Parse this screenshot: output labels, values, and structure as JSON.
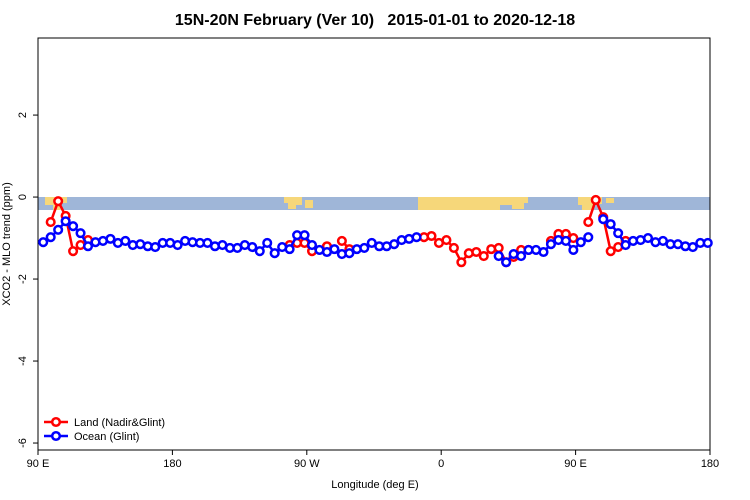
{
  "chart_data": {
    "type": "line",
    "title": "15N-20N February (Ver 10)   2015-01-01 to 2020-12-18",
    "x_label": "Longitude (deg E)",
    "y_label": "XCO2 - MLO trend (ppm)",
    "xlim": [
      90,
      540
    ],
    "ylim": [
      -6.17,
      3.88
    ],
    "xticks": [
      {
        "value": 90,
        "label": "90 E"
      },
      180,
      {
        "value": 270,
        "label": "90 W"
      },
      {
        "value": 360,
        "label": "0"
      },
      {
        "value": 450,
        "label": "90 E"
      },
      {
        "value": 540,
        "label": "180"
      }
    ],
    "yticks": [
      -6,
      -4,
      -2,
      0,
      2
    ],
    "legend": "lower left",
    "x": [
      93.5,
      98.5,
      103.5,
      108.5,
      113.5,
      118.5,
      123.5,
      128.5,
      133.5,
      138.5,
      143.5,
      148.5,
      153.5,
      158.5,
      163.5,
      168.5,
      173.5,
      178.5,
      183.5,
      188.5,
      193.5,
      198.5,
      203.5,
      208.5,
      213.5,
      218.5,
      223.5,
      228.5,
      233.5,
      238.5,
      243.5,
      248.5,
      253.5,
      258.5,
      263.5,
      268.5,
      273.5,
      278.5,
      283.5,
      288.5,
      293.5,
      298.5,
      303.5,
      308.5,
      313.5,
      318.5,
      323.5,
      328.5,
      333.5,
      338.5,
      343.5,
      348.5,
      353.5,
      358.5,
      363.5,
      368.5,
      373.5,
      378.5,
      383.5,
      388.5,
      393.5,
      398.5,
      403.5,
      408.5,
      413.5,
      418.5,
      423.5,
      428.5,
      433.5,
      438.5,
      443.5,
      448.5,
      453.5,
      458.5,
      463.5,
      468.5,
      473.5,
      478.5,
      483.5,
      488.5,
      493.5,
      498.5,
      503.5,
      508.5,
      513.5,
      518.5,
      523.5,
      528.5,
      533.5,
      538.5
    ],
    "series": [
      {
        "name": "Land (Nadir&Glint)",
        "color": "#ff0000",
        "values": [
          null,
          -0.61,
          -0.1,
          -0.46,
          -1.32,
          -1.17,
          -1.05,
          null,
          null,
          null,
          null,
          null,
          null,
          null,
          null,
          null,
          null,
          null,
          null,
          null,
          null,
          null,
          null,
          null,
          null,
          null,
          null,
          null,
          null,
          null,
          null,
          null,
          null,
          -1.17,
          -1.12,
          -1.12,
          -1.32,
          null,
          -1.2,
          null,
          -1.07,
          -1.27,
          null,
          null,
          null,
          null,
          null,
          null,
          null,
          null,
          null,
          -0.98,
          -0.95,
          -1.12,
          -1.05,
          -1.24,
          -1.59,
          -1.37,
          -1.34,
          -1.44,
          -1.27,
          -1.24,
          -1.59,
          -1.46,
          -1.29,
          -1.29,
          null,
          null,
          -1.07,
          -0.9,
          -0.9,
          -1.0,
          null,
          -0.61,
          -0.07,
          -0.49,
          -1.32,
          -1.22,
          -1.07,
          null,
          null,
          null,
          null,
          null,
          null,
          null,
          null,
          null,
          null,
          null
        ]
      },
      {
        "name": "Ocean (Glint)",
        "color": "#0000ff",
        "values": [
          -1.1,
          -0.98,
          -0.8,
          -0.59,
          -0.71,
          -0.88,
          -1.2,
          -1.1,
          -1.07,
          -1.02,
          -1.12,
          -1.07,
          -1.17,
          -1.15,
          -1.2,
          -1.22,
          -1.12,
          -1.12,
          -1.17,
          -1.07,
          -1.1,
          -1.12,
          -1.12,
          -1.2,
          -1.17,
          -1.24,
          -1.24,
          -1.17,
          -1.22,
          -1.32,
          -1.12,
          -1.37,
          -1.22,
          -1.27,
          -0.93,
          -0.93,
          -1.17,
          -1.29,
          -1.34,
          -1.27,
          -1.39,
          -1.37,
          -1.27,
          -1.24,
          -1.12,
          -1.2,
          -1.2,
          -1.15,
          -1.05,
          -1.02,
          -0.98,
          null,
          null,
          null,
          null,
          null,
          null,
          null,
          null,
          null,
          null,
          -1.44,
          -1.59,
          -1.39,
          -1.44,
          -1.29,
          -1.29,
          -1.34,
          -1.15,
          -1.05,
          -1.07,
          -1.29,
          -1.1,
          -0.98,
          null,
          -0.54,
          -0.66,
          -0.88,
          -1.17,
          -1.07,
          -1.05,
          -1.0,
          -1.1,
          -1.07,
          -1.15,
          -1.15,
          -1.2,
          -1.22,
          -1.12,
          -1.12
        ]
      }
    ]
  }
}
